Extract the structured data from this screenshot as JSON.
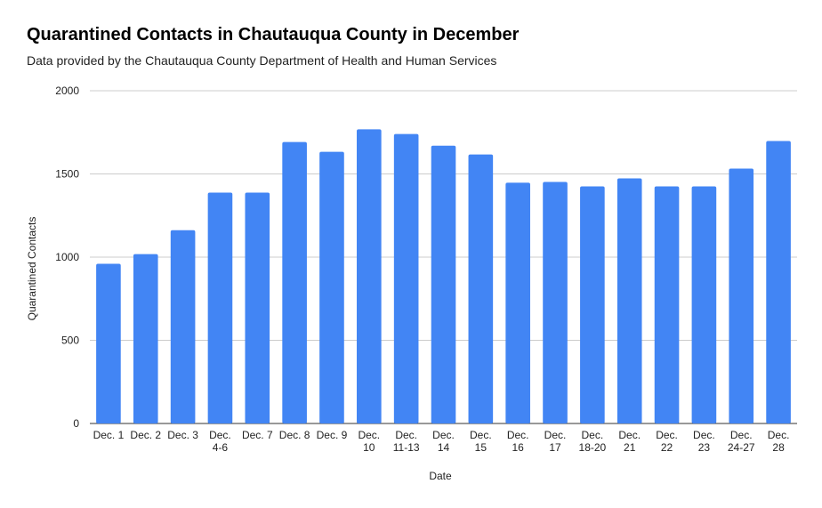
{
  "chart_data": {
    "type": "bar",
    "title": "Quarantined Contacts in Chautauqua County in December",
    "subtitle": "Data provided by the Chautauqua County Department of Health and Human Services",
    "xlabel": "Date",
    "ylabel": "Quarantined Contacts",
    "ylim": [
      0,
      2000
    ],
    "yticks": [
      0,
      500,
      1000,
      1500,
      2000
    ],
    "grid": true,
    "bar_color": "#4285f4",
    "categories": [
      [
        "Dec. 1"
      ],
      [
        "Dec. 2"
      ],
      [
        "Dec. 3"
      ],
      [
        "Dec.",
        "4-6"
      ],
      [
        "Dec. 7"
      ],
      [
        "Dec. 8"
      ],
      [
        "Dec. 9"
      ],
      [
        "Dec.",
        "10"
      ],
      [
        "Dec.",
        "11-13"
      ],
      [
        "Dec.",
        "14"
      ],
      [
        "Dec.",
        "15"
      ],
      [
        "Dec.",
        "16"
      ],
      [
        "Dec.",
        "17"
      ],
      [
        "Dec.",
        "18-20"
      ],
      [
        "Dec.",
        "21"
      ],
      [
        "Dec.",
        "22"
      ],
      [
        "Dec.",
        "23"
      ],
      [
        "Dec.",
        "24-27"
      ],
      [
        "Dec.",
        "28"
      ]
    ],
    "values": [
      960,
      1018,
      1162,
      1388,
      1388,
      1692,
      1633,
      1768,
      1740,
      1670,
      1617,
      1447,
      1452,
      1425,
      1473,
      1425,
      1425,
      1532,
      1698
    ]
  }
}
